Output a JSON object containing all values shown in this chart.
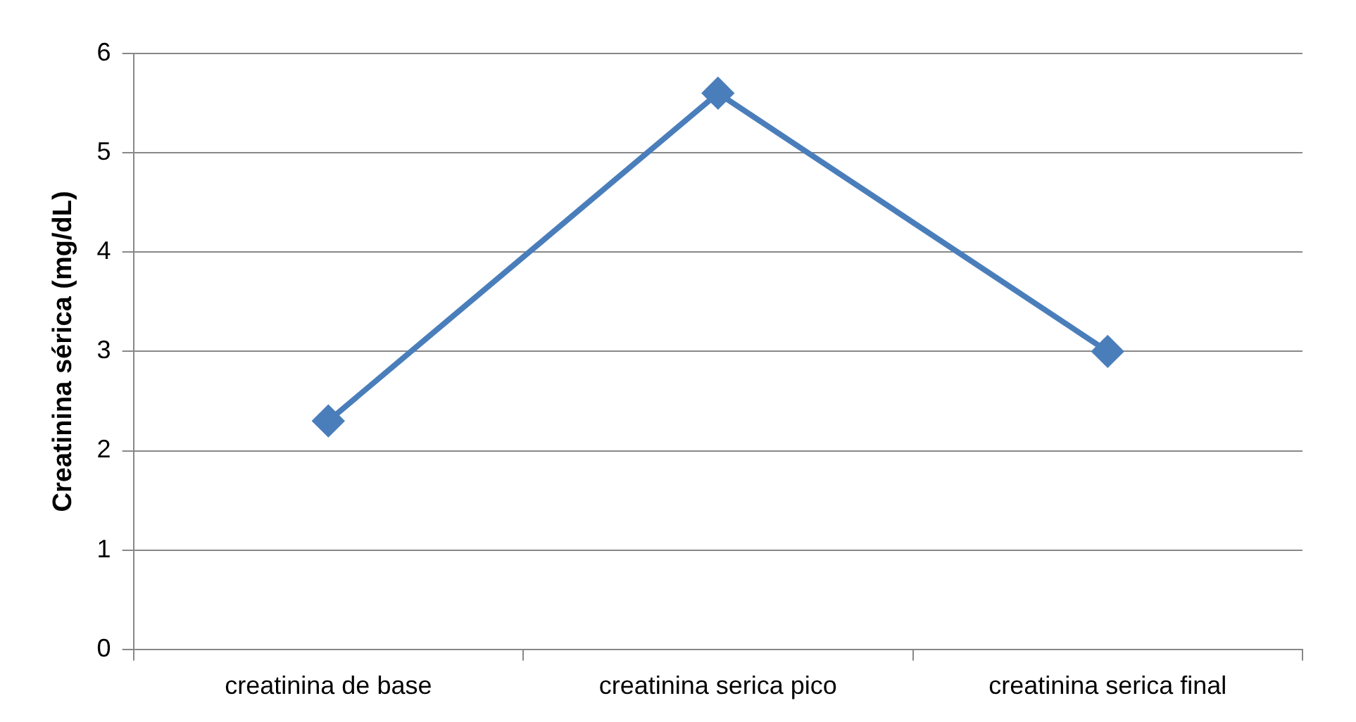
{
  "chart_data": {
    "type": "line",
    "ylabel": "Creatinina sérica (mg/dL)",
    "categories": [
      "creatinina de base",
      "creatinina serica pico",
      "creatinina serica final"
    ],
    "series": [
      {
        "color": "#4a7ebb",
        "values": [
          2.3,
          5.6,
          3.0
        ]
      }
    ],
    "ylim": [
      0,
      6
    ],
    "yticks": [
      0,
      1,
      2,
      3,
      4,
      5,
      6
    ],
    "grid": "y",
    "legend": false,
    "marker": "diamond",
    "line_style": "solid"
  }
}
